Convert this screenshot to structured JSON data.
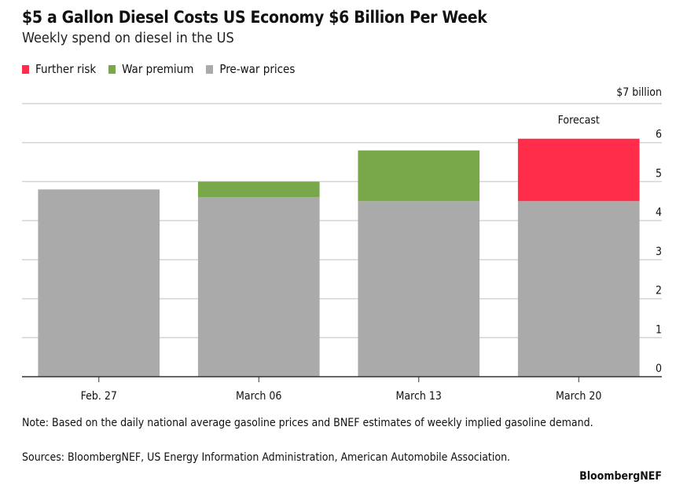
{
  "chart_data": {
    "type": "bar",
    "stacked": true,
    "title": "$5 a Gallon Diesel Costs US Economy $6 Billion Per Week",
    "subtitle": "Weekly spend on diesel in the US",
    "categories": [
      "Feb. 27",
      "March 06",
      "March 13",
      "March 20"
    ],
    "series": [
      {
        "name": "Pre-war prices",
        "color": "#aaaaaa",
        "values": [
          4.8,
          4.6,
          4.5,
          4.5
        ]
      },
      {
        "name": "War premium",
        "color": "#78a84a",
        "values": [
          0,
          0.4,
          1.3,
          0
        ]
      },
      {
        "name": "Further risk",
        "color": "#ff2d4a",
        "values": [
          0,
          0,
          0,
          1.6
        ]
      }
    ],
    "legend_order": [
      "Further risk",
      "War premium",
      "Pre-war prices"
    ],
    "legend_placement": "top-left",
    "ylim": [
      0,
      7
    ],
    "yticks": [
      "0",
      "1",
      "2",
      "3",
      "4",
      "5",
      "6",
      "$7 billion"
    ],
    "y_axis_side": "right",
    "grid": true,
    "annotation": "Forecast",
    "note": "Note: Based on the daily national average gasoline prices and BNEF estimates of weekly implied gasoline demand.",
    "sources": "Sources: BloombergNEF, US Energy Information Administration, American Automobile Association.",
    "brand": "BloombergNEF"
  }
}
